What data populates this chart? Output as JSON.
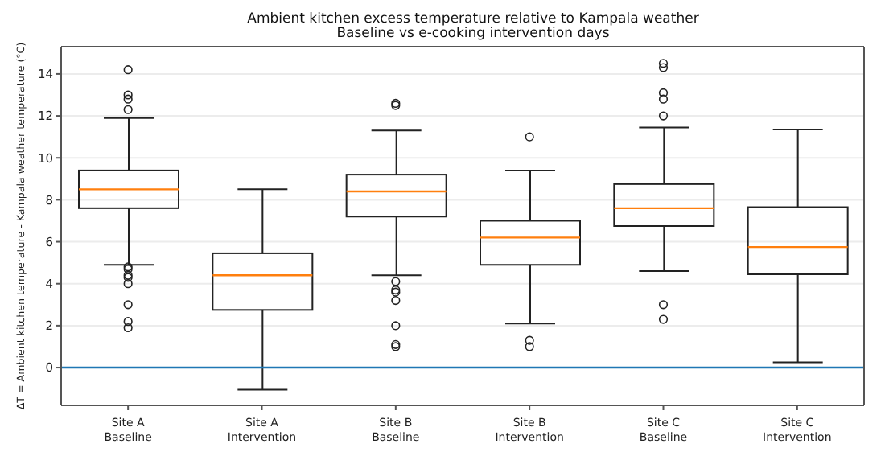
{
  "chart_data": {
    "type": "box",
    "title": "Ambient kitchen excess temperature relative to Kampala weather",
    "subtitle": "Baseline vs e-cooking intervention days",
    "ylabel": "ΔT = Ambient kitchen temperature - Kampala weather temperature (°C)",
    "categories": [
      "Site A\nBaseline",
      "Site A\nIntervention",
      "Site B\nBaseline",
      "Site B\nIntervention",
      "Site C\nBaseline",
      "Site C\nIntervention"
    ],
    "boxes": [
      {
        "low": 4.9,
        "q1": 7.6,
        "median": 8.5,
        "q3": 9.4,
        "high": 11.9,
        "outliers": [
          14.2,
          13.0,
          12.8,
          12.3,
          4.8,
          4.7,
          4.4,
          4.3,
          4.0,
          3.0,
          2.2,
          1.9
        ]
      },
      {
        "low": -1.05,
        "q1": 2.75,
        "median": 4.4,
        "q3": 5.45,
        "high": 8.5
      },
      {
        "low": 4.4,
        "q1": 7.2,
        "median": 8.4,
        "q3": 9.2,
        "high": 11.3,
        "outliers": [
          12.6,
          12.5,
          4.1,
          3.7,
          3.6,
          3.2,
          2.0,
          1.1,
          1.0
        ]
      },
      {
        "low": 2.1,
        "q1": 4.9,
        "median": 6.2,
        "q3": 7.0,
        "high": 9.4,
        "outliers": [
          11.0,
          1.3,
          1.0
        ]
      },
      {
        "low": 4.6,
        "q1": 6.75,
        "median": 7.6,
        "q3": 8.75,
        "high": 11.45,
        "outliers": [
          14.5,
          14.3,
          13.1,
          12.8,
          12.0,
          3.0,
          2.3
        ]
      },
      {
        "low": 0.25,
        "q1": 4.45,
        "median": 5.75,
        "q3": 7.65,
        "high": 11.35
      }
    ],
    "ylim": [
      -1.8,
      15.3
    ],
    "yticks": [
      0,
      2,
      4,
      6,
      8,
      10,
      12,
      14
    ],
    "grid": "y",
    "ref_lines": [
      {
        "axis": "y",
        "value": 0,
        "color": "#1f77b4"
      }
    ]
  }
}
